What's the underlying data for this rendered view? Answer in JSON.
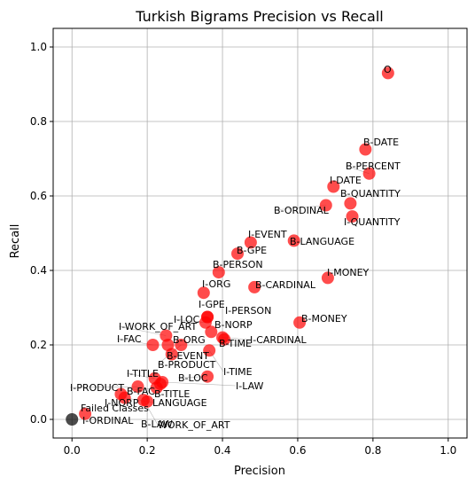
{
  "chart_data": {
    "type": "scatter",
    "title": "Turkish Bigrams Precision vs Recall",
    "xlabel": "Precision",
    "ylabel": "Recall",
    "xlim": [
      -0.05,
      1.05
    ],
    "ylim": [
      -0.05,
      1.05
    ],
    "xticks": [
      "0.0",
      "0.2",
      "0.4",
      "0.6",
      "0.8",
      "1.0"
    ],
    "yticks": [
      "0.0",
      "0.2",
      "0.4",
      "0.6",
      "0.8",
      "1.0"
    ],
    "grid": true,
    "colors": {
      "point": "#ff0000",
      "failed_point": "#000000",
      "grid": "#b0b0b0",
      "leader": "#808080"
    },
    "points": [
      {
        "label": "O",
        "x": 0.84,
        "y": 0.93
      },
      {
        "label": "B-DATE",
        "x": 0.78,
        "y": 0.725
      },
      {
        "label": "B-PERCENT",
        "x": 0.79,
        "y": 0.66
      },
      {
        "label": "I-DATE",
        "x": 0.695,
        "y": 0.625
      },
      {
        "label": "B-QUANTITY",
        "x": 0.74,
        "y": 0.58
      },
      {
        "label": "B-ORDINAL",
        "x": 0.675,
        "y": 0.575
      },
      {
        "label": "I-QUANTITY",
        "x": 0.745,
        "y": 0.545
      },
      {
        "label": "I-EVENT",
        "x": 0.475,
        "y": 0.475
      },
      {
        "label": "B-LANGUAGE",
        "x": 0.59,
        "y": 0.48
      },
      {
        "label": "B-GPE",
        "x": 0.44,
        "y": 0.445
      },
      {
        "label": "B-PERSON",
        "x": 0.39,
        "y": 0.395
      },
      {
        "label": "I-MONEY",
        "x": 0.68,
        "y": 0.38
      },
      {
        "label": "B-CARDINAL",
        "x": 0.485,
        "y": 0.355
      },
      {
        "label": "I-ORG",
        "x": 0.35,
        "y": 0.34
      },
      {
        "label": "B-MONEY",
        "x": 0.605,
        "y": 0.26
      },
      {
        "label": "I-GPE",
        "x": 0.36,
        "y": 0.275
      },
      {
        "label": "I-PERSON",
        "x": 0.36,
        "y": 0.275
      },
      {
        "label": "I-LOC",
        "x": 0.355,
        "y": 0.26
      },
      {
        "label": "B-NORP",
        "x": 0.37,
        "y": 0.235
      },
      {
        "label": "I-WORK_OF_ART",
        "x": 0.25,
        "y": 0.225
      },
      {
        "label": "I-FAC",
        "x": 0.215,
        "y": 0.2
      },
      {
        "label": "B-ORG",
        "x": 0.255,
        "y": 0.2
      },
      {
        "label": "B-TIME",
        "x": 0.405,
        "y": 0.215
      },
      {
        "label": "I-CARDINAL",
        "x": 0.4,
        "y": 0.22
      },
      {
        "label": "B-EVENT",
        "x": 0.265,
        "y": 0.175
      },
      {
        "label": "B-PRODUCT",
        "x": 0.29,
        "y": 0.2
      },
      {
        "label": "I-TIME",
        "x": 0.365,
        "y": 0.185
      },
      {
        "label": "I-TITLE",
        "x": 0.22,
        "y": 0.11
      },
      {
        "label": "B-LOC",
        "x": 0.36,
        "y": 0.115
      },
      {
        "label": "I-LAW",
        "x": 0.24,
        "y": 0.1
      },
      {
        "label": "I-PRODUCT",
        "x": 0.175,
        "y": 0.088
      },
      {
        "label": "B-FAC",
        "x": 0.225,
        "y": 0.085
      },
      {
        "label": "B-TITLE",
        "x": 0.235,
        "y": 0.095
      },
      {
        "label": "I-NORP",
        "x": 0.13,
        "y": 0.068
      },
      {
        "label": "LANGUAGE",
        "x": 0.14,
        "y": 0.058
      },
      {
        "label": "Failed Classes",
        "x": 0.0,
        "y": 0.0,
        "failed": true
      },
      {
        "label": "I-ORDINAL",
        "x": 0.035,
        "y": 0.015
      },
      {
        "label": "B-LAW",
        "x": 0.2,
        "y": 0.048
      },
      {
        "label": "WORK_OF_ART",
        "x": 0.19,
        "y": 0.052
      }
    ]
  }
}
